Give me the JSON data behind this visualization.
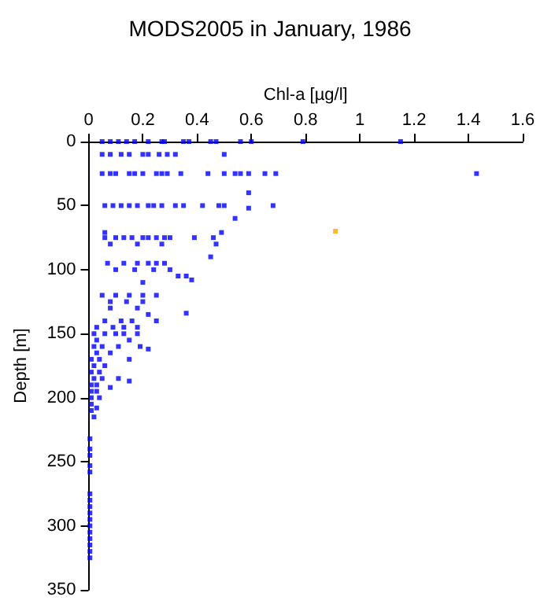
{
  "chart_data": {
    "type": "scatter",
    "title": "MODS2005 in January, 1986",
    "xlabel": "Chl-a [µg/l]",
    "ylabel": "Depth [m]",
    "xlim": [
      0,
      1.6
    ],
    "xticks": [
      0,
      0.2,
      0.4,
      0.6,
      0.8,
      1,
      1.2,
      1.4,
      1.6
    ],
    "ylim": [
      350,
      0
    ],
    "yticks": [
      0,
      50,
      100,
      150,
      200,
      250,
      300,
      350
    ],
    "grid": false,
    "marker": "square",
    "series": [
      {
        "color": "#0000ff",
        "x": [
          0.05,
          0.08,
          0.11,
          0.14,
          0.17,
          0.22,
          0.27,
          0.28,
          0.35,
          0.37,
          0.45,
          0.47,
          0.56,
          0.6,
          0.79,
          1.15,
          0.05,
          0.08,
          0.12,
          0.15,
          0.2,
          0.22,
          0.26,
          0.29,
          0.32,
          0.5,
          0.05,
          0.08,
          0.1,
          0.15,
          0.17,
          0.2,
          0.25,
          0.27,
          0.29,
          0.34,
          0.44,
          0.5,
          0.54,
          0.56,
          0.59,
          0.65,
          0.69,
          1.43,
          0.59,
          0.06,
          0.09,
          0.12,
          0.15,
          0.18,
          0.22,
          0.24,
          0.27,
          0.32,
          0.35,
          0.42,
          0.48,
          0.5,
          0.68,
          0.59,
          0.54,
          0.06,
          0.49,
          0.06,
          0.1,
          0.13,
          0.16,
          0.2,
          0.22,
          0.25,
          0.28,
          0.3,
          0.39,
          0.46,
          0.08,
          0.18,
          0.27,
          0.47,
          0.45,
          0.07,
          0.13,
          0.18,
          0.22,
          0.25,
          0.28,
          0.1,
          0.17,
          0.24,
          0.3,
          0.33,
          0.36,
          0.38,
          0.2,
          0.05,
          0.1,
          0.15,
          0.2,
          0.25,
          0.08,
          0.14,
          0.2,
          0.08,
          0.18,
          0.36,
          0.22,
          0.06,
          0.12,
          0.16,
          0.25,
          0.03,
          0.09,
          0.13,
          0.18,
          0.02,
          0.06,
          0.1,
          0.13,
          0.18,
          0.03,
          0.15,
          0.02,
          0.05,
          0.11,
          0.19,
          0.22,
          0.03,
          0.08,
          0.01,
          0.04,
          0.15,
          0.02,
          0.06,
          0.01,
          0.04,
          0.02,
          0.05,
          0.11,
          0.15,
          0.01,
          0.03,
          0.08,
          0.01,
          0.03,
          0.01,
          0.04,
          0.01,
          0.03,
          0.01,
          0.02,
          0.005,
          0.005,
          0.005,
          0.005,
          0.005,
          0.005,
          0.005,
          0.005,
          0.005,
          0.005,
          0.005,
          0.005,
          0.005,
          0.005,
          0.005,
          0.005
        ],
        "values": [
          0,
          0,
          0,
          0,
          0,
          0,
          0,
          0,
          0,
          0,
          0,
          0,
          0,
          0,
          0,
          0,
          10,
          10,
          10,
          10,
          10,
          10,
          10,
          10,
          10,
          10,
          25,
          25,
          25,
          25,
          25,
          25,
          25,
          25,
          25,
          25,
          25,
          25,
          25,
          25,
          25,
          25,
          25,
          25,
          40,
          50,
          50,
          50,
          50,
          50,
          50,
          50,
          50,
          50,
          50,
          50,
          50,
          50,
          50,
          52,
          60,
          71,
          71,
          75,
          75,
          75,
          75,
          75,
          75,
          75,
          75,
          75,
          75,
          75,
          80,
          80,
          80,
          80,
          90,
          95,
          95,
          95,
          95,
          95,
          95,
          100,
          100,
          100,
          100,
          105,
          105,
          108,
          110,
          120,
          120,
          120,
          120,
          120,
          125,
          125,
          125,
          130,
          130,
          134,
          135,
          140,
          140,
          140,
          140,
          145,
          145,
          145,
          145,
          150,
          150,
          150,
          150,
          150,
          155,
          155,
          160,
          160,
          160,
          160,
          162,
          165,
          165,
          170,
          170,
          170,
          175,
          175,
          180,
          180,
          185,
          185,
          185,
          187,
          190,
          190,
          192,
          195,
          195,
          200,
          200,
          205,
          208,
          210,
          215,
          232,
          240,
          245,
          253,
          258,
          275,
          280,
          285,
          290,
          295,
          300,
          305,
          310,
          315,
          320,
          325
        ]
      },
      {
        "color": "#ffa500",
        "x": [
          0.91
        ],
        "values": [
          70
        ]
      }
    ]
  }
}
